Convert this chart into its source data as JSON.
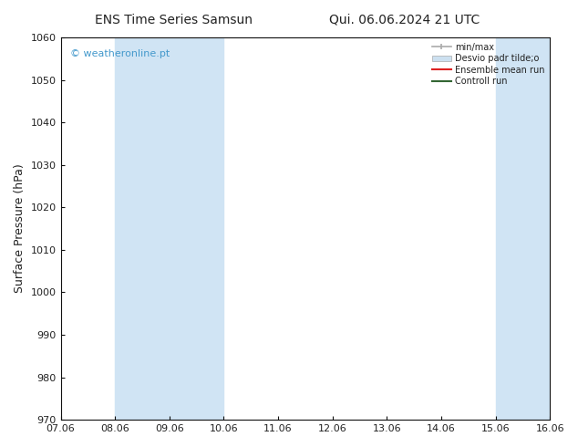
{
  "title_left": "ENS Time Series Samsun",
  "title_right": "Qui. 06.06.2024 21 UTC",
  "ylabel": "Surface Pressure (hPa)",
  "ylim": [
    970,
    1060
  ],
  "yticks": [
    970,
    980,
    990,
    1000,
    1010,
    1020,
    1030,
    1040,
    1050,
    1060
  ],
  "xtick_labels": [
    "07.06",
    "08.06",
    "09.06",
    "10.06",
    "11.06",
    "12.06",
    "13.06",
    "14.06",
    "15.06",
    "16.06"
  ],
  "xtick_positions": [
    0,
    1,
    2,
    3,
    4,
    5,
    6,
    7,
    8,
    9
  ],
  "xlim_start": 0,
  "xlim_end": 9,
  "watermark": "© weatheronline.pt",
  "watermark_color": "#4499cc",
  "bg_color": "#ffffff",
  "plot_bg_color": "#ffffff",
  "shaded_bands": [
    {
      "x_start": 1.0,
      "x_end": 2.0,
      "color": "#d0e4f4"
    },
    {
      "x_start": 2.0,
      "x_end": 3.0,
      "color": "#d0e4f4"
    },
    {
      "x_start": 8.0,
      "x_end": 8.5,
      "color": "#d0e4f4"
    },
    {
      "x_start": 8.5,
      "x_end": 9.0,
      "color": "#d0e4f4"
    }
  ],
  "legend_label_minmax": "min/max",
  "legend_label_std": "Desvio padr tilde;o",
  "legend_label_ens": "Ensemble mean run",
  "legend_label_ctrl": "Controll run",
  "legend_color_minmax": "#aaaaaa",
  "legend_color_std": "#cce0f0",
  "legend_color_ens": "#dd2222",
  "legend_color_ctrl": "#336633",
  "title_fontsize": 10,
  "tick_fontsize": 8,
  "label_fontsize": 9
}
